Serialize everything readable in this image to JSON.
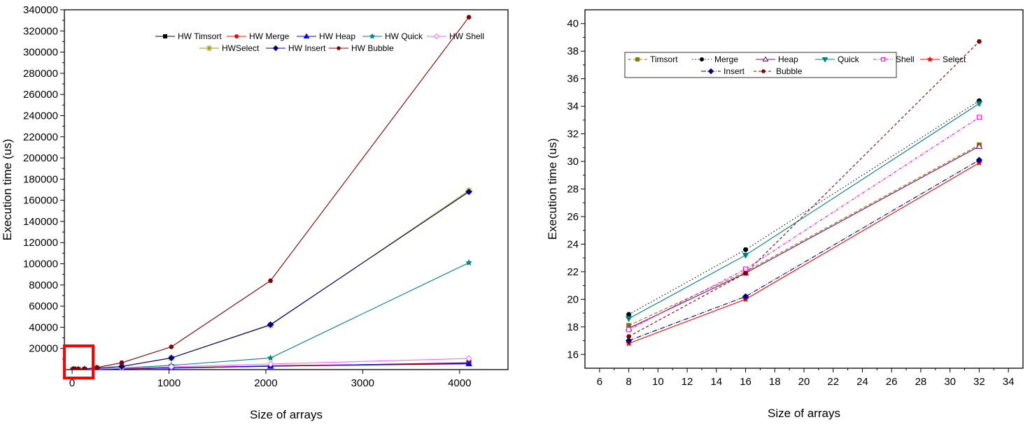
{
  "chart_data": [
    {
      "type": "line",
      "title": "",
      "xlabel": "Size of arrays",
      "ylabel": "Execution time (us)",
      "xlim": [
        -80,
        4500
      ],
      "ylim": [
        0,
        340000
      ],
      "xticks": [
        0,
        1000,
        2000,
        3000,
        4000
      ],
      "xtick_labels": [
        "0",
        "1000",
        "2000",
        "3000",
        "4000"
      ],
      "yticks": [
        20000,
        40000,
        60000,
        80000,
        100000,
        120000,
        140000,
        160000,
        180000,
        200000,
        220000,
        240000,
        260000,
        280000,
        300000,
        320000,
        340000
      ],
      "ytick_labels": [
        "20000",
        "40000",
        "60000",
        "80000",
        "100000",
        "120000",
        "140000",
        "160000",
        "180000",
        "200000",
        "220000",
        "240000",
        "260000",
        "280000",
        "300000",
        "320000",
        "340000"
      ],
      "x": [
        8,
        16,
        32,
        64,
        128,
        256,
        512,
        1024,
        2048,
        4096
      ],
      "legend_position": "top-right",
      "annotation": "red box highlighting small array sizes near origin",
      "series": [
        {
          "name": "HW Timsort",
          "color": "#000000",
          "dash": "",
          "marker": "square",
          "values": [
            18,
            24,
            31,
            60,
            150,
            380,
            700,
            1500,
            3200,
            6500
          ]
        },
        {
          "name": "HW Merge",
          "color": "#ff0000",
          "dash": "",
          "marker": "circle",
          "values": [
            19,
            24,
            34,
            70,
            160,
            400,
            800,
            1700,
            3600,
            6000
          ]
        },
        {
          "name": "HW Heap",
          "color": "#0000ff",
          "dash": "",
          "marker": "triangle",
          "values": [
            18,
            22,
            31,
            65,
            150,
            360,
            760,
            1600,
            3300,
            5500
          ]
        },
        {
          "name": "HW Quick",
          "color": "#008080",
          "dash": "",
          "marker": "star",
          "values": [
            19,
            23,
            34,
            90,
            250,
            700,
            1500,
            4000,
            11000,
            101000
          ]
        },
        {
          "name": "HW Shell",
          "color": "#ff66ff",
          "dash": "",
          "marker": "diamond-open",
          "values": [
            18,
            22,
            33,
            80,
            200,
            550,
            1200,
            2600,
            5300,
            10500
          ]
        },
        {
          "name": "HWSelect",
          "color": "#999900",
          "dash": "",
          "marker": "asterisk",
          "values": [
            17,
            20,
            30,
            95,
            380,
            1400,
            3000,
            11000,
            42000,
            169000
          ]
        },
        {
          "name": "HW Insert",
          "color": "#000080",
          "dash": "",
          "marker": "diamond",
          "values": [
            17,
            20,
            30,
            95,
            380,
            1400,
            3000,
            11000,
            42500,
            168000
          ]
        },
        {
          "name": "HW Bubble",
          "color": "#800000",
          "dash": "",
          "marker": "hexagon",
          "values": [
            17,
            22,
            39,
            150,
            600,
            2000,
            6500,
            21500,
            84000,
            333000
          ]
        }
      ]
    },
    {
      "type": "line",
      "title": "",
      "xlabel": "Size of arrays",
      "ylabel": "Execution time (us)",
      "xlim": [
        5,
        35
      ],
      "ylim": [
        15,
        41
      ],
      "xticks": [
        6,
        8,
        10,
        12,
        14,
        16,
        18,
        20,
        22,
        24,
        26,
        28,
        30,
        32,
        34
      ],
      "xtick_labels": [
        "6",
        "8",
        "10",
        "12",
        "14",
        "16",
        "18",
        "20",
        "22",
        "24",
        "26",
        "28",
        "30",
        "32",
        "34"
      ],
      "yticks": [
        16,
        18,
        20,
        22,
        24,
        26,
        28,
        30,
        32,
        34,
        36,
        38,
        40
      ],
      "ytick_labels": [
        "16",
        "18",
        "20",
        "22",
        "24",
        "26",
        "28",
        "30",
        "32",
        "34",
        "36",
        "38",
        "40"
      ],
      "x": [
        8,
        16,
        32
      ],
      "legend_position": "top-left",
      "series": [
        {
          "name": "Timsort",
          "color": "#808000",
          "dash": "5,3",
          "marker": "square",
          "values": [
            18.1,
            22.0,
            31.2
          ]
        },
        {
          "name": "Merge",
          "color": "#000000",
          "dash": "1.5,3",
          "marker": "circle",
          "values": [
            18.9,
            23.6,
            34.4
          ]
        },
        {
          "name": "Heap",
          "color": "#800080",
          "dash": "",
          "marker": "triangle-open",
          "values": [
            17.9,
            21.9,
            31.1
          ]
        },
        {
          "name": "Quick",
          "color": "#008080",
          "dash": "",
          "marker": "triangle-down",
          "values": [
            18.6,
            23.2,
            34.2
          ]
        },
        {
          "name": "Shell",
          "color": "#ff00ff",
          "dash": "4,2,1,2",
          "marker": "square-open",
          "values": [
            17.8,
            22.2,
            33.2
          ]
        },
        {
          "name": "Select",
          "color": "#ff0000",
          "dash": "",
          "marker": "star",
          "values": [
            16.8,
            20.0,
            29.9
          ]
        },
        {
          "name": "Insert",
          "color": "#000080",
          "dash": "7,2,1,2",
          "marker": "diamond",
          "values": [
            17.0,
            20.2,
            30.1
          ]
        },
        {
          "name": "Bubble",
          "color": "#800000",
          "dash": "4,3",
          "marker": "hexagon",
          "values": [
            17.3,
            21.9,
            38.7
          ]
        }
      ]
    }
  ]
}
